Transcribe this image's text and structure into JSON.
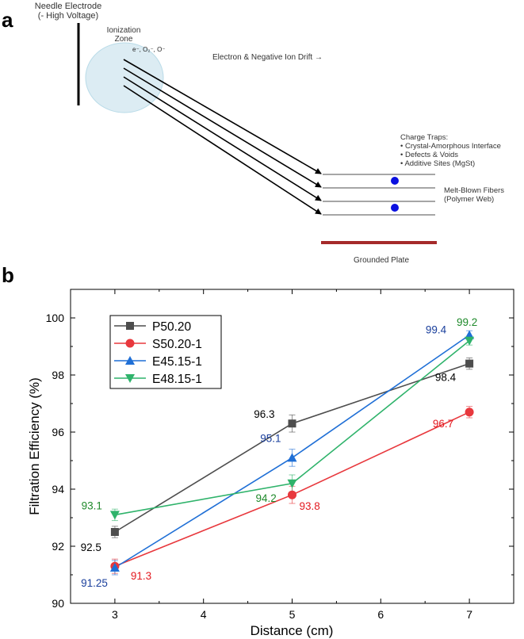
{
  "panel_a": {
    "label": "a",
    "electrode_title": "Needle Electrode",
    "electrode_subtitle": "(- High Voltage)",
    "ion_zone_line1": "Ionization",
    "ion_zone_line2": "Zone",
    "ion_species": "e⁻, O₂⁻, O⁻",
    "drift_label": "Electron & Negative Ion Drift →",
    "traps_title": "Charge Traps:",
    "traps_items": [
      "• Crystal-Amorphous Interface",
      "• Defects & Voids",
      "• Additive Sites (MgSt)"
    ],
    "fibers_line1": "Melt-Blown Fibers",
    "fibers_line2": "(Polymer Web)",
    "plate_label": "Grounded Plate",
    "colors": {
      "zone_fill": "#dcecf3",
      "zone_stroke": "#b9dbe8",
      "trap_dot": "#0a10e0",
      "plate": "#a52a2a",
      "fiber": "#888888"
    }
  },
  "panel_b": {
    "label": "b"
  },
  "chart_data": {
    "type": "line",
    "xlabel": "Distance (cm)",
    "ylabel": "Filtration Efficiency (%)",
    "xlim": [
      2.5,
      7.5
    ],
    "ylim": [
      90,
      101
    ],
    "xticks": [
      3,
      4,
      5,
      6,
      7
    ],
    "yticks": [
      90,
      92,
      94,
      96,
      98,
      100
    ],
    "x": [
      3,
      5,
      7
    ],
    "legend_position": "upper-left",
    "series": [
      {
        "name": "P50.20",
        "marker": "square",
        "color": "#4d4d4d",
        "label_color": "#000000",
        "values": [
          92.5,
          96.3,
          98.4
        ],
        "errors": [
          0.2,
          0.3,
          0.2
        ],
        "labels": [
          "92.5",
          "96.3",
          "98.4"
        ]
      },
      {
        "name": "S50.20-1",
        "marker": "circle",
        "color": "#e8383d",
        "label_color": "#e3191f",
        "values": [
          91.3,
          93.8,
          96.7
        ],
        "errors": [
          0.25,
          0.3,
          0.2
        ],
        "labels": [
          "91.3",
          "93.8",
          "96.7"
        ]
      },
      {
        "name": "E45.15-1",
        "marker": "triangle-up",
        "color": "#1f6fd6",
        "label_color": "#1a3f9c",
        "values": [
          91.25,
          95.1,
          99.4
        ],
        "errors": [
          0.25,
          0.3,
          0.15
        ],
        "labels": [
          "91.25",
          "95.1",
          "99.4"
        ]
      },
      {
        "name": "E48.15-1",
        "marker": "triangle-down",
        "color": "#2fb36b",
        "label_color": "#1f8a2b",
        "values": [
          93.1,
          94.2,
          99.2
        ],
        "errors": [
          0.2,
          0.3,
          0.15
        ],
        "labels": [
          "93.1",
          "94.2",
          "99.2"
        ]
      }
    ]
  }
}
